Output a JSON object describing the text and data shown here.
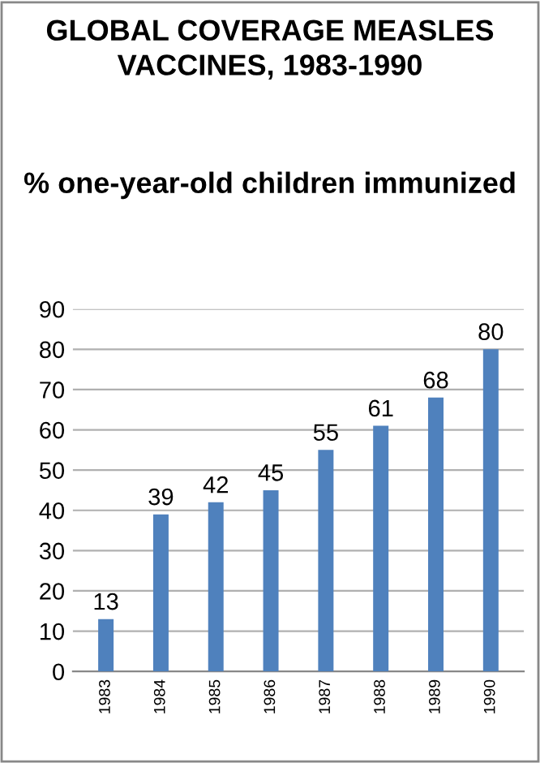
{
  "chart_data": {
    "type": "bar",
    "title": "GLOBAL COVERAGE MEASLES VACCINES, 1983-1990",
    "subtitle": "% one-year-old children immunized",
    "categories": [
      "1983",
      "1984",
      "1985",
      "1986",
      "1987",
      "1988",
      "1989",
      "1990"
    ],
    "values": [
      13,
      39,
      42,
      45,
      55,
      61,
      68,
      80
    ],
    "color": "#4f81bd",
    "ylim": [
      0,
      90
    ],
    "yticks": [
      0,
      10,
      20,
      30,
      40,
      50,
      60,
      70,
      80,
      90
    ],
    "grid": "y",
    "data_labels": true
  }
}
